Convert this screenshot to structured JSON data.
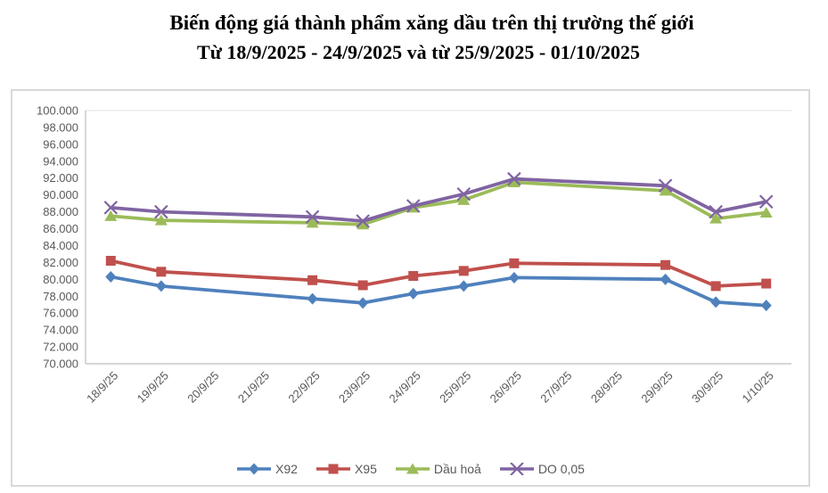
{
  "header": {
    "title_line1": "Biến động giá thành phẩm xăng dầu trên thị trường thế giới",
    "title_line2": "Từ 18/9/2025 - 24/9/2025 và từ 25/9/2025 - 01/10/2025"
  },
  "chart_data": {
    "type": "line",
    "title": "Biến động giá thành phẩm xăng dầu trên thị trường thế giới",
    "subtitle": "Từ 18/9/2025 - 24/9/2025 và từ 25/9/2025 - 01/10/2025",
    "categories": [
      "18/9/25",
      "19/9/25",
      "20/9/25",
      "21/9/25",
      "22/9/25",
      "23/9/25",
      "24/9/25",
      "25/9/25",
      "26/9/25",
      "27/9/25",
      "28/9/25",
      "29/9/25",
      "30/9/25",
      "1/10/25"
    ],
    "y_axis": {
      "min": 70000,
      "max": 100000,
      "step": 2000,
      "tick_labels": [
        "100.000",
        "98.000",
        "96.000",
        "94.000",
        "92.000",
        "90.000",
        "88.000",
        "86.000",
        "84.000",
        "82.000",
        "80.000",
        "78.000",
        "76.000",
        "74.000",
        "72.000",
        "70.000"
      ]
    },
    "grid": false,
    "legend_position": "bottom",
    "axis_color": "#bfbfbf",
    "plot_border_color": "#e2e2e2",
    "label_color": "#595959",
    "series": [
      {
        "name": "X92",
        "color": "#4F81BD",
        "marker": "diamond",
        "values": [
          80300,
          79200,
          null,
          null,
          77700,
          77200,
          78300,
          79200,
          80200,
          null,
          null,
          80000,
          77300,
          76900
        ]
      },
      {
        "name": "X95",
        "color": "#C0504D",
        "marker": "square",
        "values": [
          82200,
          80900,
          null,
          null,
          79900,
          79300,
          80400,
          81000,
          81900,
          null,
          null,
          81700,
          79200,
          79500
        ]
      },
      {
        "name": "Dầu hoả",
        "color": "#9BBB59",
        "marker": "triangle",
        "values": [
          87500,
          87000,
          null,
          null,
          86700,
          86500,
          88500,
          89400,
          91500,
          null,
          null,
          90500,
          87200,
          87900
        ]
      },
      {
        "name": "DO 0,05",
        "color": "#8064A2",
        "marker": "x",
        "values": [
          88500,
          88000,
          null,
          null,
          87400,
          86900,
          88700,
          90100,
          91900,
          null,
          null,
          91100,
          88000,
          89200
        ]
      }
    ]
  }
}
